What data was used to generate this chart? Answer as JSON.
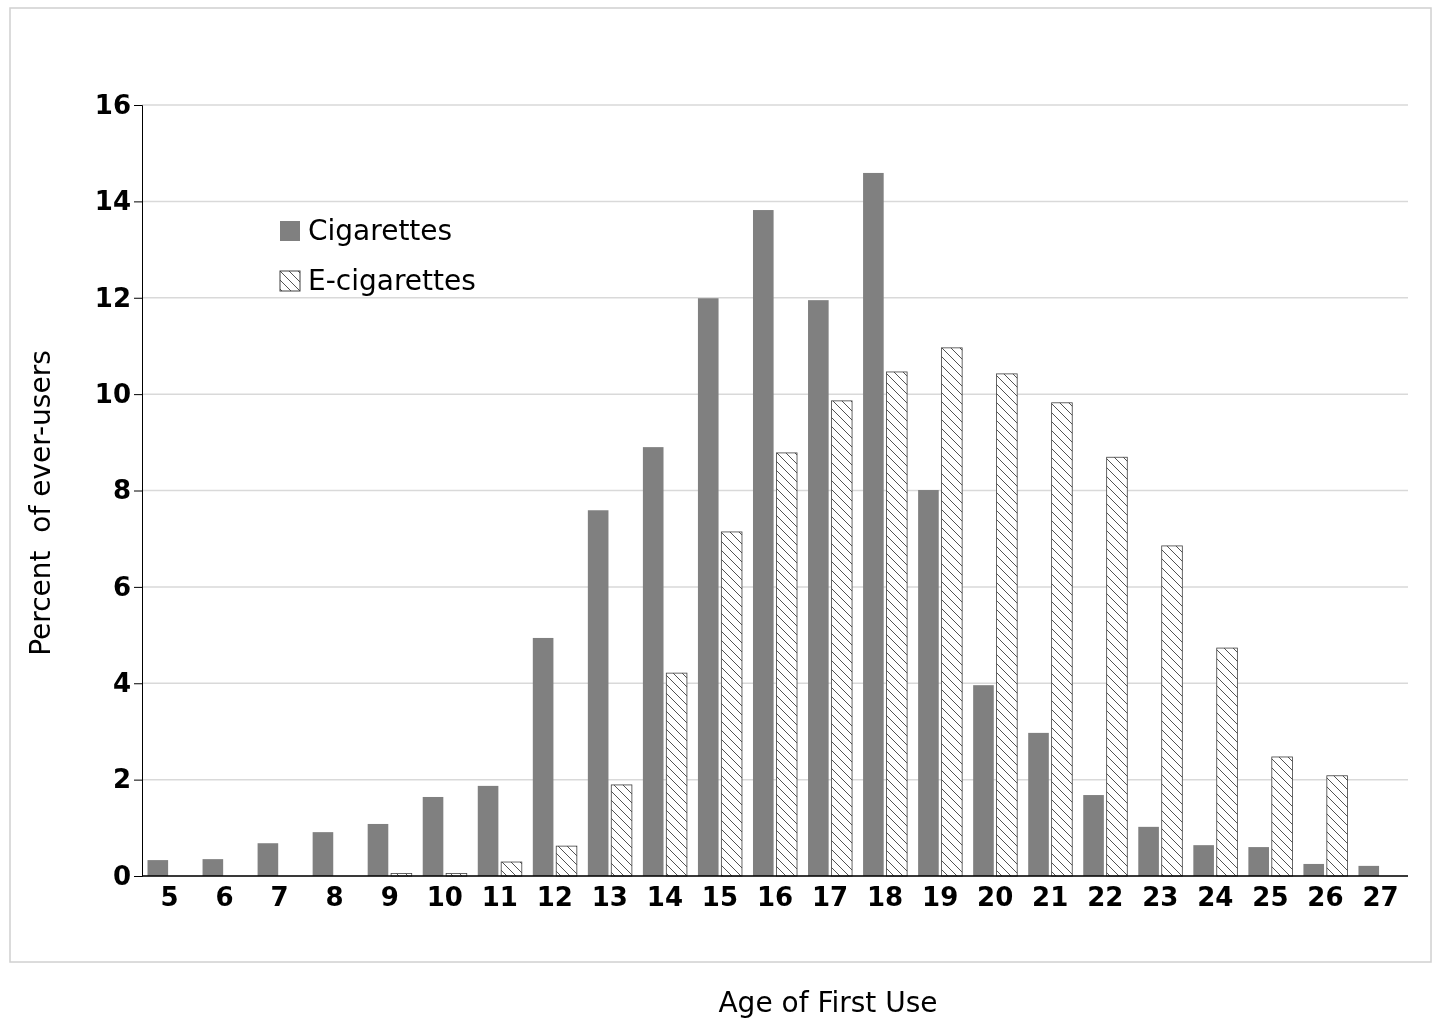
{
  "chart_data": {
    "type": "bar",
    "xlabel": "Age of First Use",
    "ylabel": "Percent  of ever-users",
    "categories": [
      "5",
      "6",
      "7",
      "8",
      "9",
      "10",
      "11",
      "12",
      "13",
      "14",
      "15",
      "16",
      "17",
      "18",
      "19",
      "20",
      "21",
      "22",
      "23",
      "24",
      "25",
      "26",
      "27"
    ],
    "series": [
      {
        "name": "Cigarettes",
        "color": "#808080",
        "values": [
          0.33,
          0.35,
          0.68,
          0.91,
          1.08,
          1.64,
          1.87,
          4.94,
          7.59,
          8.9,
          11.99,
          13.82,
          11.95,
          14.59,
          8.01,
          3.96,
          2.97,
          1.68,
          1.02,
          0.64,
          0.6,
          0.25,
          0.21
        ]
      },
      {
        "name": "E-cigarettes",
        "color": "#404040",
        "values": [
          0,
          0,
          0,
          0,
          0.05,
          0.05,
          0.29,
          0.62,
          1.89,
          4.21,
          7.14,
          8.78,
          9.86,
          10.46,
          10.96,
          10.42,
          9.82,
          8.69,
          6.85,
          4.73,
          2.47,
          2.08,
          0
        ]
      }
    ],
    "ylim": [
      0,
      16
    ],
    "yticks": [
      0,
      2,
      4,
      6,
      8,
      10,
      12,
      14,
      16
    ],
    "grid": "y",
    "legend": "top left"
  }
}
